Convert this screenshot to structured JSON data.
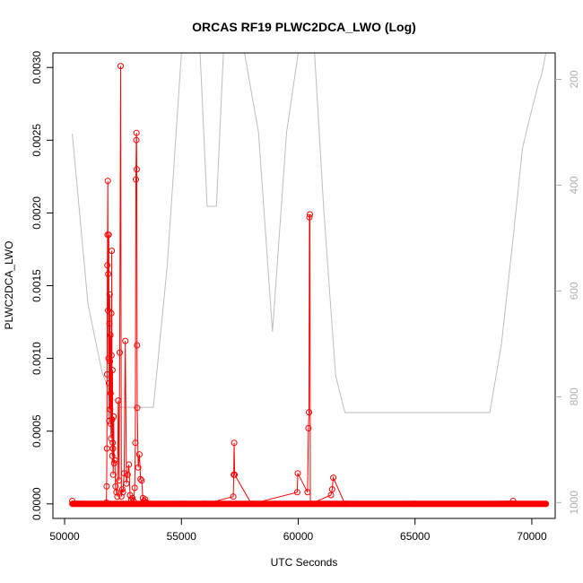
{
  "chart_data": {
    "type": "scatter",
    "title": "ORCAS RF19 PLWC2DCA_LWO (Log)",
    "xlabel": "UTC Seconds",
    "ylabel": "PLWC2DCA_LWO",
    "xlim": [
      49500,
      71000
    ],
    "ylim": [
      -0.0001,
      0.0031
    ],
    "x_ticks": [
      50000,
      55000,
      60000,
      65000,
      70000
    ],
    "y_ticks": [
      0.0,
      0.0005,
      0.001,
      0.0015,
      0.002,
      0.0025,
      0.003
    ],
    "y_tick_labels": [
      "0.0000",
      "0.0005",
      "0.0010",
      "0.0015",
      "0.0020",
      "0.0025",
      "0.0030"
    ],
    "y2_lim": [
      1030,
      150
    ],
    "y2_ticks": [
      200,
      400,
      600,
      800,
      1000
    ],
    "grid": false,
    "colors": {
      "series": "#ff0000",
      "secondary": "#bebebe",
      "axes": "#000000",
      "secondary_ticks": "#b0b0b0"
    },
    "series": [
      {
        "axis": "left",
        "style": "points-and-lines",
        "points": [
          [
            50330,
            2e-05
          ],
          [
            51790,
            1e-05
          ],
          [
            51800,
            0.00012
          ],
          [
            51810,
            0.00038
          ],
          [
            51820,
            0.00089
          ],
          [
            51830,
            0.00164
          ],
          [
            51840,
            0.00185
          ],
          [
            51850,
            0.00222
          ],
          [
            51860,
            0.00133
          ],
          [
            51870,
            0.00158
          ],
          [
            51880,
            0.001
          ],
          [
            51890,
            0.00185
          ],
          [
            51900,
            0.00083
          ],
          [
            51910,
            0.00057
          ],
          [
            51920,
            0.00124
          ],
          [
            51930,
            0.00144
          ],
          [
            51940,
            0.00098
          ],
          [
            51950,
            0.00065
          ],
          [
            51960,
            0.00116
          ],
          [
            51970,
            0.00076
          ],
          [
            51980,
            0.00055
          ],
          [
            51990,
            0.00045
          ],
          [
            52000,
            0.00131
          ],
          [
            52010,
            0.00102
          ],
          [
            52020,
            0.00174
          ],
          [
            52030,
            0.00058
          ],
          [
            52040,
            0.00033
          ],
          [
            52050,
            0.00092
          ],
          [
            52060,
            0.00042
          ],
          [
            52070,
            0.00038
          ],
          [
            52080,
            0.0002
          ],
          [
            52100,
            0.0006
          ],
          [
            52120,
            0.00028
          ],
          [
            52150,
            0.0003
          ],
          [
            52180,
            0.00012
          ],
          [
            52220,
            8e-05
          ],
          [
            52260,
            5e-05
          ],
          [
            52300,
            0.00071
          ],
          [
            52330,
            0.00016
          ],
          [
            52360,
            0.00104
          ],
          [
            52400,
            0.00301
          ],
          [
            52430,
            5e-05
          ],
          [
            52470,
            0.0001
          ],
          [
            52500,
            8e-05
          ],
          [
            52550,
            0.00021
          ],
          [
            52600,
            0.00112
          ],
          [
            52650,
            0.00014
          ],
          [
            52700,
            0.0002
          ],
          [
            52750,
            0.00027
          ],
          [
            52800,
            6e-05
          ],
          [
            52850,
            3e-05
          ],
          [
            52900,
            4e-05
          ],
          [
            52950,
            2e-05
          ],
          [
            53000,
            0.00011
          ],
          [
            53030,
            0.00042
          ],
          [
            53050,
            0.00223
          ],
          [
            53070,
            0.0025
          ],
          [
            53080,
            0.00255
          ],
          [
            53090,
            0.0023
          ],
          [
            53100,
            0.00109
          ],
          [
            53110,
            0.00066
          ],
          [
            53150,
            0.00025
          ],
          [
            53200,
            0.00034
          ],
          [
            53250,
            0.00017
          ],
          [
            53300,
            0.00016
          ],
          [
            53350,
            4e-05
          ],
          [
            53400,
            2e-05
          ],
          [
            53450,
            3e-05
          ],
          [
            53500,
            1e-05
          ],
          [
            54000,
            0.0
          ],
          [
            55000,
            0.0
          ],
          [
            56000,
            0.0
          ],
          [
            57220,
            5e-05
          ],
          [
            57240,
            0.0002
          ],
          [
            57260,
            0.00042
          ],
          [
            57280,
            0.0002
          ],
          [
            58000,
            0.0
          ],
          [
            59960,
            8e-05
          ],
          [
            59980,
            0.00021
          ],
          [
            60400,
            8e-05
          ],
          [
            60440,
            0.00052
          ],
          [
            60460,
            0.00063
          ],
          [
            60480,
            0.00197
          ],
          [
            60500,
            0.00199
          ],
          [
            60520,
            0.0
          ],
          [
            61400,
            6e-05
          ],
          [
            61450,
            0.0001
          ],
          [
            61500,
            0.00018
          ],
          [
            62000,
            0.0
          ],
          [
            65000,
            0.0
          ],
          [
            69200,
            2e-05
          ],
          [
            70600,
            0.0
          ]
        ]
      },
      {
        "axis": "right",
        "style": "line",
        "points": [
          [
            50330,
            303
          ],
          [
            51000,
            625
          ],
          [
            51600,
            753
          ],
          [
            52000,
            800
          ],
          [
            52400,
            820
          ],
          [
            53800,
            820
          ],
          [
            54400,
            550
          ],
          [
            55000,
            150
          ],
          [
            55800,
            150
          ],
          [
            56100,
            440
          ],
          [
            56500,
            440
          ],
          [
            56800,
            150
          ],
          [
            57200,
            150
          ],
          [
            57700,
            150
          ],
          [
            58300,
            300
          ],
          [
            58900,
            677
          ],
          [
            59500,
            300
          ],
          [
            60000,
            150
          ],
          [
            60700,
            150
          ],
          [
            61100,
            450
          ],
          [
            61600,
            760
          ],
          [
            62000,
            830
          ],
          [
            68200,
            830
          ],
          [
            68700,
            700
          ],
          [
            69200,
            500
          ],
          [
            69600,
            330
          ],
          [
            69900,
            275
          ],
          [
            70300,
            205
          ],
          [
            70400,
            195
          ],
          [
            70600,
            150
          ]
        ]
      }
    ]
  }
}
